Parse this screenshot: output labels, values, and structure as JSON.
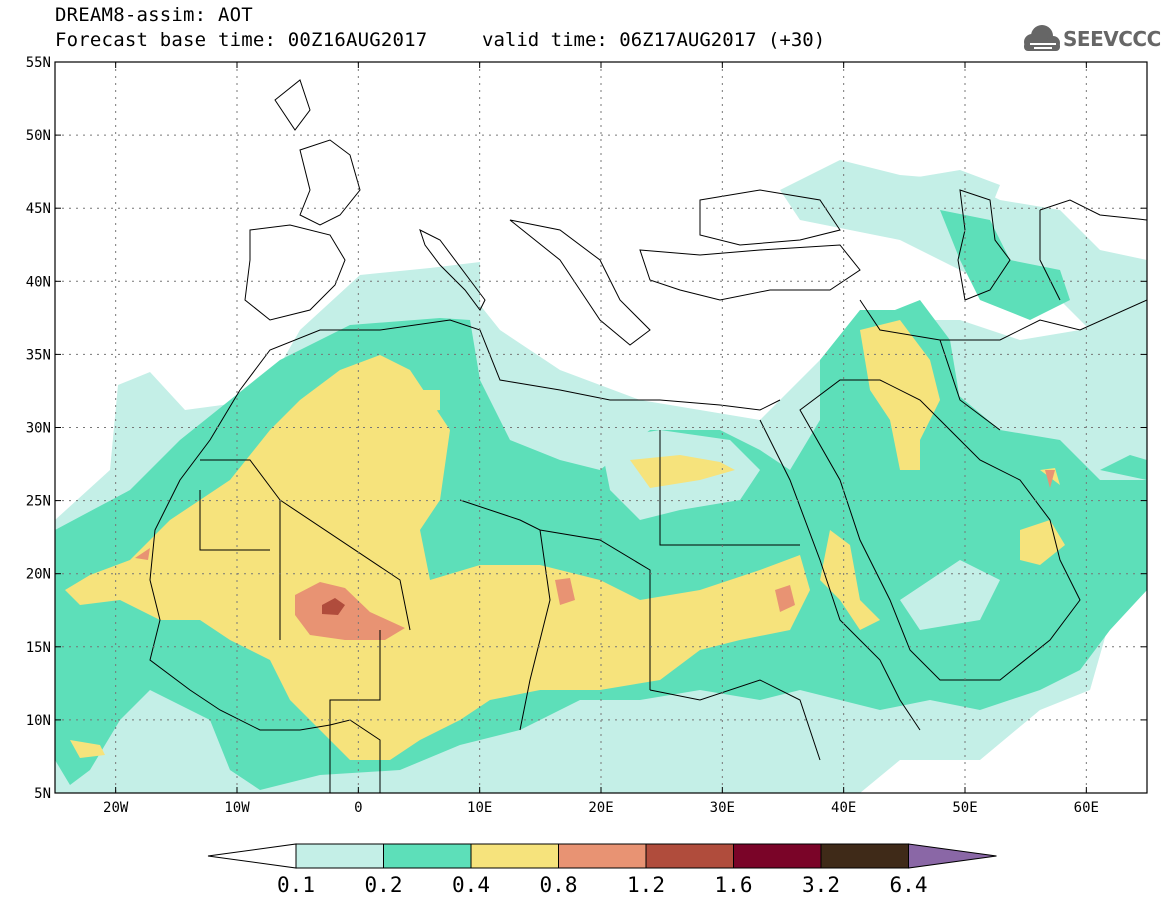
{
  "header": {
    "title": "DREAM8-assim: AOT",
    "base_time": "Forecast base time: 00Z16AUG2017",
    "valid_time": "valid time: 06Z17AUG2017 (+30)"
  },
  "logo": {
    "text": "SEEVCCC",
    "icon": "cloud-logo-icon"
  },
  "map": {
    "lon_range": [
      -25,
      65
    ],
    "lat_range": [
      5,
      55
    ],
    "lat_ticks": [
      "5N",
      "10N",
      "15N",
      "20N",
      "25N",
      "30N",
      "35N",
      "40N",
      "45N",
      "50N",
      "55N"
    ],
    "lon_ticks": [
      "20W",
      "10W",
      "0",
      "10E",
      "20E",
      "30E",
      "40E",
      "50E",
      "60E"
    ],
    "grid": true
  },
  "colorbar": {
    "labels": [
      "0.1",
      "0.2",
      "0.4",
      "0.8",
      "1.2",
      "1.6",
      "3.2",
      "6.4"
    ],
    "colors": [
      "#ffffff",
      "#c4efe7",
      "#5ddfb9",
      "#f6e37c",
      "#e89373",
      "#b04c3c",
      "#7a0428",
      "#3f2a18",
      "#8a67a6"
    ]
  }
}
